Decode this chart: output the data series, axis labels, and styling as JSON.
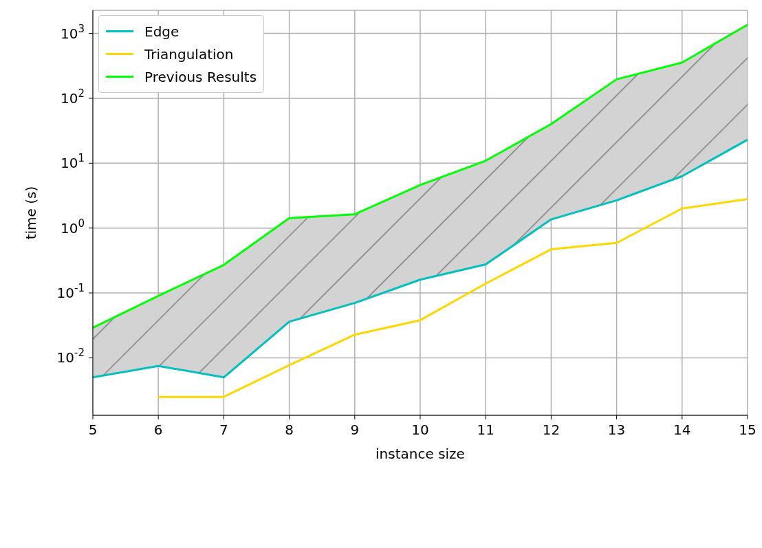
{
  "chart_data": {
    "type": "line",
    "xlabel": "instance size",
    "ylabel": "time (s)",
    "x": [
      5,
      6,
      7,
      8,
      9,
      10,
      11,
      12,
      13,
      14,
      15
    ],
    "series": [
      {
        "name": "Edge",
        "color": "#00bfbf",
        "values": [
          0.005,
          0.0075,
          0.005,
          0.036,
          0.07,
          0.16,
          0.275,
          1.36,
          2.67,
          6.3,
          23
        ]
      },
      {
        "name": "Triangulation",
        "color": "#ffd700",
        "values": [
          null,
          0.0025,
          0.0025,
          0.0077,
          0.0227,
          0.038,
          0.139,
          0.47,
          0.59,
          2.0,
          2.8
        ]
      },
      {
        "name": "Previous Results",
        "color": "#00ff00",
        "values": [
          0.029,
          0.09,
          0.27,
          1.42,
          1.63,
          4.6,
          10.9,
          40,
          196,
          355,
          1360
        ],
        "lower": [
          0.005,
          0.0075,
          0.005,
          0.036,
          0.07,
          0.16,
          0.275,
          1.36,
          2.67,
          6.3,
          23
        ],
        "upper": [
          0.029,
          0.09,
          0.27,
          1.42,
          1.63,
          4.6,
          10.9,
          40,
          196,
          355,
          1360
        ]
      }
    ],
    "xlim": [
      5,
      15
    ],
    "xticks": [
      5,
      6,
      7,
      8,
      9,
      10,
      11,
      12,
      13,
      14,
      15
    ],
    "ylim": [
      0.0013,
      2270
    ],
    "log": true,
    "yticks": [
      {
        "value": 0.01,
        "label": "10$^{-2}$"
      },
      {
        "value": 0.1,
        "label": "10$^{-1}$"
      },
      {
        "value": 1,
        "label": "10$^{0}$"
      },
      {
        "value": 10,
        "label": "10$^{1}$"
      },
      {
        "value": 100,
        "label": "10$^{2}$"
      },
      {
        "value": 1000,
        "label": "10$^{3}$"
      }
    ],
    "grid": true,
    "legend": "top left",
    "marker": "none",
    "line_style": "solid"
  }
}
